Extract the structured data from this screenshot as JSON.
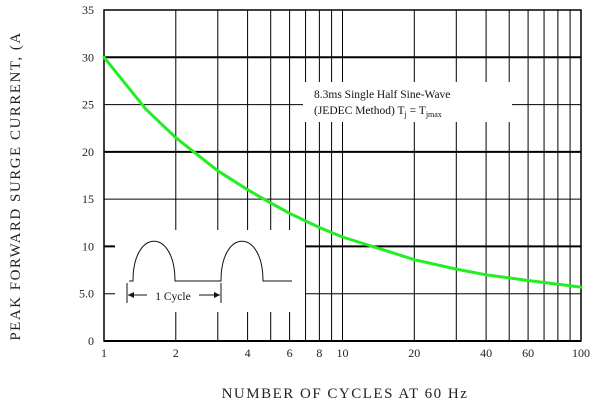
{
  "chart_data": {
    "type": "line",
    "xlabel": "NUMBER OF CYCLES AT 60 Hz",
    "ylabel": "PEAK FORWARD SURGE CURRENT, (A",
    "x_scale": "log",
    "xlim": [
      1,
      100
    ],
    "ylim": [
      0,
      35
    ],
    "x_tick_labels": [
      {
        "value": 1,
        "label": "1"
      },
      {
        "value": 2,
        "label": "2"
      },
      {
        "value": 4,
        "label": "4"
      },
      {
        "value": 6,
        "label": "6"
      },
      {
        "value": 8,
        "label": "8"
      },
      {
        "value": 10,
        "label": "10"
      },
      {
        "value": 20,
        "label": "20"
      },
      {
        "value": 40,
        "label": "40"
      },
      {
        "value": 60,
        "label": "60"
      },
      {
        "value": 100,
        "label": "100"
      }
    ],
    "y_tick_labels": [
      {
        "value": 0,
        "label": "0"
      },
      {
        "value": 5,
        "label": "5.0"
      },
      {
        "value": 10,
        "label": "10"
      },
      {
        "value": 15,
        "label": "15"
      },
      {
        "value": 20,
        "label": "20"
      },
      {
        "value": 25,
        "label": "25"
      },
      {
        "value": 30,
        "label": "30"
      },
      {
        "value": 35,
        "label": "35"
      }
    ],
    "grid": true,
    "series": [
      {
        "color": "#22ee22",
        "x": [
          1,
          1.5,
          2,
          3,
          4,
          5,
          6,
          8,
          10,
          15,
          20,
          30,
          40,
          60,
          80,
          100
        ],
        "y": [
          30,
          24.5,
          21.5,
          18,
          16,
          14.6,
          13.5,
          12,
          11,
          9.6,
          8.6,
          7.6,
          7,
          6.4,
          6,
          5.7
        ]
      }
    ],
    "annotations": {
      "condition_line1": "8.3ms Single Half Sine-Wave",
      "condition_line2": "(JEDEC Method) T",
      "condition_sub_j": "j",
      "condition_eq": " = T",
      "condition_sub_jmax": "jmax",
      "cycle_label": "1 Cycle"
    }
  }
}
